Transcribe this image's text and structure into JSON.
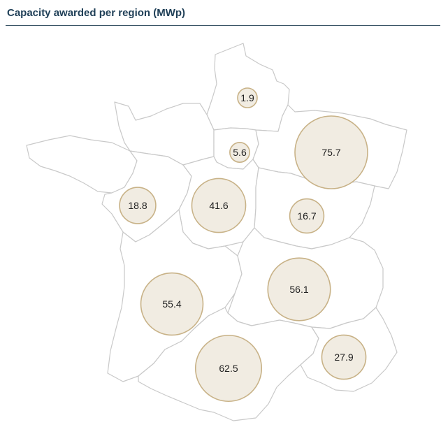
{
  "title": "Capacity awarded per region (MWp)",
  "colors": {
    "title": "#1f3f57",
    "region_stroke": "#c9c9c9",
    "bubble_fill": "#f1ece2",
    "bubble_stroke": "#c8b287"
  },
  "chart_data": {
    "type": "bubble-map",
    "title": "Capacity awarded per region (MWp)",
    "unit": "MWp",
    "values": [
      1.9,
      5.6,
      75.7,
      18.8,
      41.6,
      16.7,
      55.4,
      56.1,
      62.5,
      27.9
    ]
  }
}
